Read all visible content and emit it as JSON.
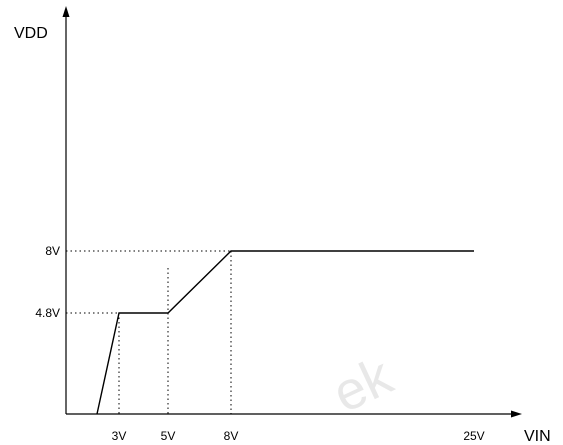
{
  "chart_data": {
    "type": "line",
    "title": "",
    "xlabel": "VIN",
    "ylabel": "VDD",
    "x_unit": "V",
    "y_unit": "V",
    "series": [
      {
        "x": [
          2.3,
          3,
          5,
          8,
          25
        ],
        "y": [
          0,
          4.8,
          4.8,
          8,
          8
        ]
      }
    ],
    "x_ticks": [
      {
        "value": 3,
        "label": "3V"
      },
      {
        "value": 5,
        "label": "5V"
      },
      {
        "value": 8,
        "label": "8V"
      },
      {
        "value": 25,
        "label": "25V"
      }
    ],
    "y_ticks": [
      {
        "value": 4.8,
        "label": "4.8V"
      },
      {
        "value": 8,
        "label": "8V"
      }
    ],
    "grid": false,
    "legend": "none"
  },
  "watermark": "ek"
}
